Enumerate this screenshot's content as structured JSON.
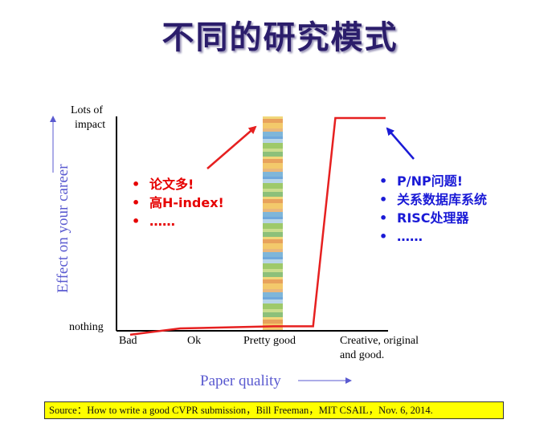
{
  "slide": {
    "title": "不同的研究模式",
    "source": "Source：How to write a good CVPR submission，Bill Freeman，MIT CSAIL，Nov. 6, 2014."
  },
  "colors": {
    "title": "#2b1d6b",
    "curve": "#e62020",
    "left_bullets": "#e60000",
    "right_bullets": "#1a1ad6",
    "axis_label": "#5a5ad0",
    "source_bg": "#ffff00"
  },
  "left_notes": {
    "items": [
      "论文多!",
      "高H-index!",
      "……"
    ]
  },
  "right_notes": {
    "items": [
      "P/NP问题!",
      "关系数据库系统",
      "RISC处理器",
      "……"
    ]
  },
  "chart_data": {
    "type": "line",
    "xlabel": "Paper quality",
    "ylabel": "Effect on your career",
    "categories": [
      "Bad",
      "Ok",
      "Pretty good",
      "Creative, original and good."
    ],
    "y_ticks": [
      "nothing",
      "Lots of impact"
    ],
    "ylim": [
      0,
      1
    ],
    "series": [
      {
        "x": [
          0,
          0.75,
          2.0,
          2.35,
          2.55,
          3.0
        ],
        "y": [
          -0.03,
          0.0,
          0.01,
          0.01,
          1.0,
          1.0
        ]
      }
    ],
    "highlight_band_at": "Pretty good",
    "annotations": [
      {
        "text": "论文多! 高H-index!",
        "points_to": "Pretty good"
      },
      {
        "text": "P/NP问题! 关系数据库系统 RISC处理器",
        "points_to": "Creative, original and good."
      }
    ],
    "grid": false,
    "legend": "none"
  }
}
